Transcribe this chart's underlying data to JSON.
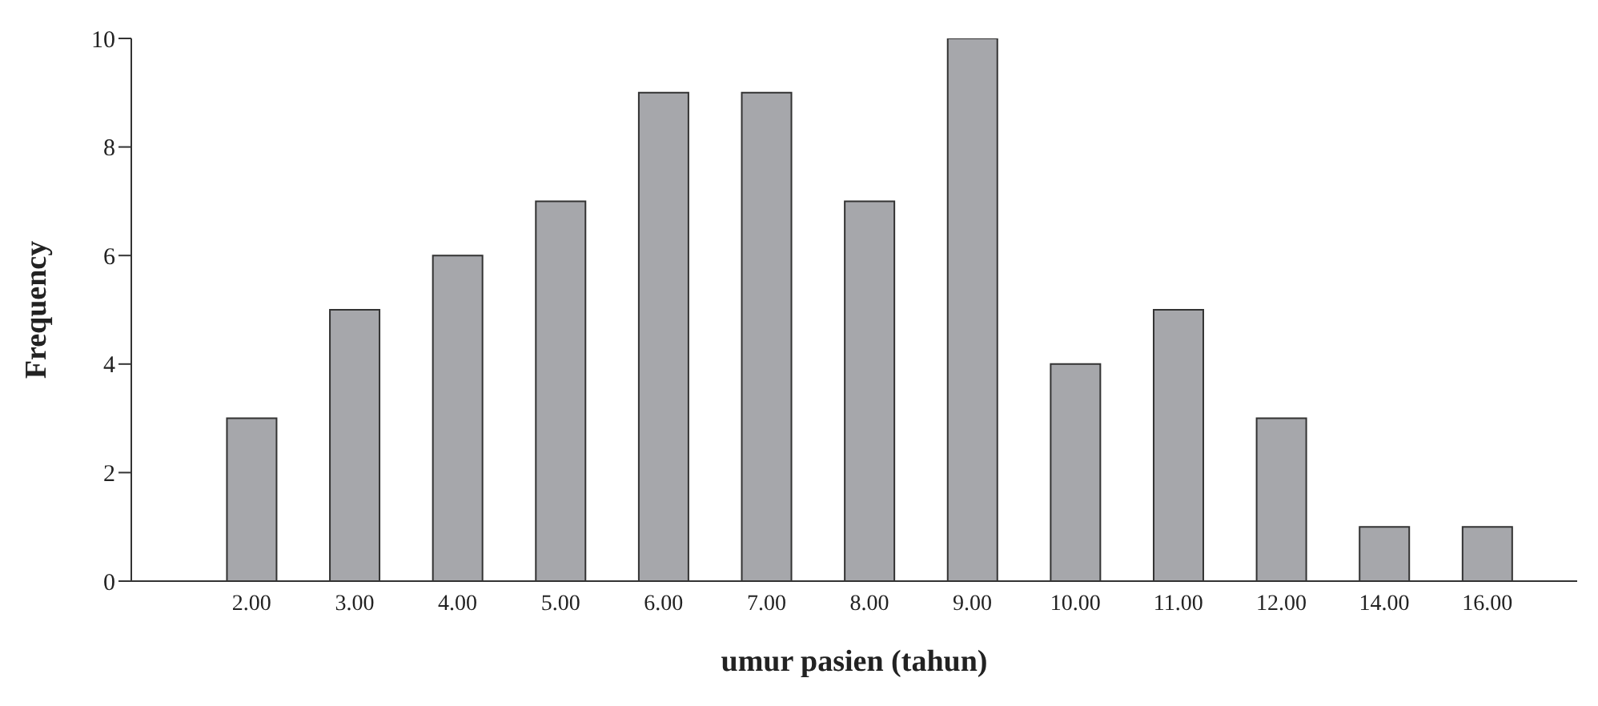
{
  "chart_data": {
    "type": "bar",
    "xlabel": "umur pasien (tahun)",
    "ylabel": "Frequency",
    "categories": [
      "2.00",
      "3.00",
      "4.00",
      "5.00",
      "6.00",
      "7.00",
      "8.00",
      "9.00",
      "10.00",
      "11.00",
      "12.00",
      "14.00",
      "16.00"
    ],
    "values": [
      3,
      5,
      6,
      7,
      9,
      9,
      7,
      10,
      4,
      5,
      3,
      1,
      1
    ],
    "color": "#a6a7ab",
    "ylim": [
      0,
      10
    ],
    "yticks": [
      0,
      2,
      4,
      6,
      8,
      10
    ],
    "grid": false,
    "legend": false
  }
}
